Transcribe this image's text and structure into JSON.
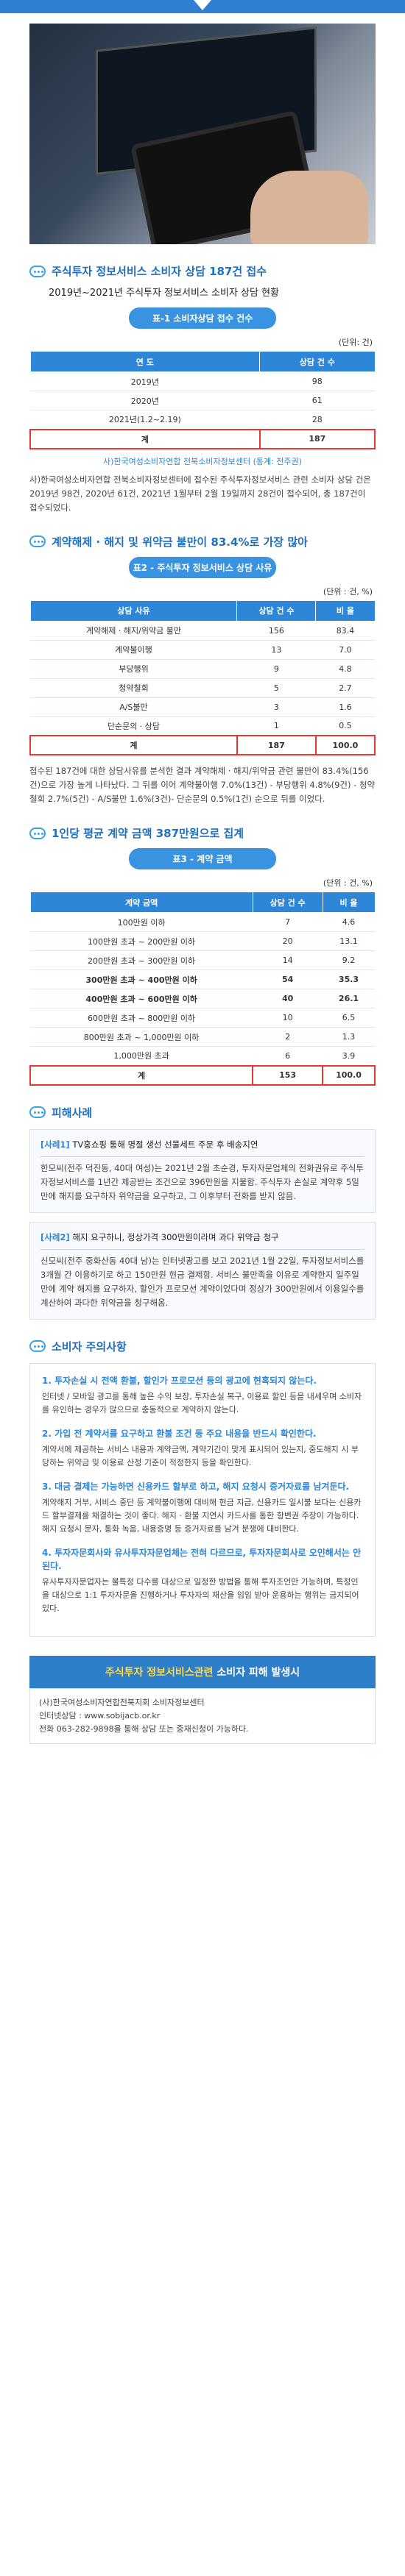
{
  "colors": {
    "accent": "#2d86d8",
    "total_border": "#e33"
  },
  "s1": {
    "title": "주식투자 정보서비스 소비자 상담 187건 접수",
    "subtitle": "2019년~2021년 주식투자 정보서비스 소비자 상담 현황",
    "pill": "표-1 소비자상담 접수 건수",
    "unit": "(단위: 건)",
    "headers": [
      "연 도",
      "상담 건 수"
    ],
    "rows": [
      [
        "2019년",
        "98"
      ],
      [
        "2020년",
        "61"
      ],
      [
        "2021년(1.2~2.19)",
        "28"
      ]
    ],
    "total": [
      "계",
      "187"
    ],
    "source": "사)한국여성소비자연합 전북소비자정보센터 (통계: 전주권)",
    "para": "사)한국여성소비자연합 전북소비자정보센터에 접수된 주식투자정보서비스 관련 소비자 상담 건은 2019년 98건, 2020년 61건, 2021년 1월부터 2월 19일까지 28건이 접수되어, 총 187건이 접수되었다."
  },
  "s2": {
    "title": "계약해제 · 해지 및 위약금 불만이 83.4%로 가장 많아",
    "pill": "표2 - 주식투자 정보서비스 상담 사유",
    "unit": "(단위 : 건, %)",
    "headers": [
      "상담 사유",
      "상담 건 수",
      "비 율"
    ],
    "rows": [
      [
        "계약해제 · 해지/위약금 불만",
        "156",
        "83.4"
      ],
      [
        "계약불이행",
        "13",
        "7.0"
      ],
      [
        "부당행위",
        "9",
        "4.8"
      ],
      [
        "청약철회",
        "5",
        "2.7"
      ],
      [
        "A/S불만",
        "3",
        "1.6"
      ],
      [
        "단순문의 · 상담",
        "1",
        "0.5"
      ]
    ],
    "total": [
      "계",
      "187",
      "100.0"
    ],
    "para": "접수된 187건에 대한 상담사유를 분석한 결과 계약해제 · 해지/위약금 관련 불만이 83.4%(156건)으로 가장 높게 나타났다. 그 뒤를 이어 계약불이행 7.0%(13건) - 부당행위 4.8%(9건) - 청약철회 2.7%(5건) - A/S불만 1.6%(3건)- 단순문의 0.5%(1건) 순으로 뒤를 이었다."
  },
  "s3": {
    "title": "1인당 평균 계약 금액 387만원으로 집계",
    "pill": "표3 - 계약 금액",
    "unit": "(단위 : 건, %)",
    "headers": [
      "계약 금액",
      "상담 건 수",
      "비 율"
    ],
    "rows": [
      [
        "100만원 이하",
        "7",
        "4.6"
      ],
      [
        "100만원 초과 ~ 200만원 이하",
        "20",
        "13.1"
      ],
      [
        "200만원 초과 ~ 300만원 이하",
        "14",
        "9.2"
      ],
      [
        "300만원 초과 ~ 400만원 이하",
        "54",
        "35.3"
      ],
      [
        "400만원 초과 ~ 600만원 이하",
        "40",
        "26.1"
      ],
      [
        "600만원 초과 ~ 800만원 이하",
        "10",
        "6.5"
      ],
      [
        "800만원 초과 ~ 1,000만원 이하",
        "2",
        "1.3"
      ],
      [
        "1,000만원 초과",
        "6",
        "3.9"
      ]
    ],
    "total": [
      "계",
      "153",
      "100.0"
    ]
  },
  "s4": {
    "title": "피해사례",
    "case1_tag": "[사례1]",
    "case1_title": "TV홍쇼핑 통해 명절 생선 선물세트 주문 후 배송지연",
    "case1_body": "한모씨(전주 덕진동, 40대 여성)는 2021년 2월 초순경, 투자자문업체의 전화권유로 주식투자정보서비스를 1년간 제공받는 조건으로 396만원을 지불함. 주식투자 손실로 계약후 5일만에 해지를 요구하자 위약금을 요구하고, 그 이후부터 전화를 받지 않음.",
    "case2_tag": "[사례2]",
    "case2_title": "해지 요구하니, 정상가격 300만원이라며 과다 위약금 청구",
    "case2_body": "신모씨(전주 중화산동 40대 남)는 인터넷광고를 보고 2021년 1월 22일, 투자정보서비스를 3개월 간 이용하기로 하고 150만원 현금 결제함. 서비스 불만족을 이유로 계약한지 일주일 만에 계약 해지를 요구하자, 할인가 프로모션 계약이었다며 정상가 300만원에서 이용일수를 계산하여 과다한 위약금을 청구해옴."
  },
  "s5": {
    "title": "소비자 주의사항",
    "tips": [
      {
        "h": "1. 투자손실 시 전액 환불, 할인가 프로모션 등의 광고에 현혹되지 않는다.",
        "b": "인터넷 / 모바일 광고를 통해 높은 수익 보장, 투자손실 복구, 이용료 할인 등을 내세우며 소비자를 유인하는 경우가 많으므로 충동적으로 계약하지 않는다."
      },
      {
        "h": "2. 가입 전 계약서를 요구하고 환불 조건 등 주요 내용을 반드시 확인한다.",
        "b": "계약서에 제공하는 서비스 내용과 계약금액, 계약기간이 맞게 표시되어 있는지, 중도해지 시 부당하는 위약금 및 이용료 산정 기준이 적정한지 등을 확인한다."
      },
      {
        "h": "3. 대금 결제는 가능하면 신용카드 할부로 하고, 해지 요청시 증거자료를 남겨둔다.",
        "b": "계약해지 거부, 서비스 중단 등 계약불이행에 대비해 현금 지급, 신용카드 일시불 보다는 신용카드 할부결제를 채결하는 것이 좋다. 해지 · 환불 지연시 카드사를 통한 항변권 주장이 가능하다. 해지 요청시 문자, 통화 녹음, 내용증명 등 증거자료를 남겨 분쟁에 대비한다."
      },
      {
        "h": "4. 투자자문회사와 유사투자자문업체는 전혀 다르므로, 투자자문회사로 오인해서는 안 된다.",
        "b": "유사투자자문업자는 불특정 다수를 대상으로 일정한 방법을 통해 투자조언만 가능하며, 특정인을 대상으로 1:1 투자자문을 진행하거나 투자자의 재산을 임임 받아 운용하는 행위는 금지되어 있다."
      }
    ]
  },
  "banner": {
    "a": "주식투자 정보서비스관련",
    "b": "소비자 피해 발생시"
  },
  "contact": {
    "org": "(사)한국여성소비자연합전북지회 소비자정보센터",
    "homepage": "인터넷상담 : www.sobijacb.or.kr",
    "phone": "전화 063-282-9898을 통해 상담 또는 중재신청이 가능하다."
  }
}
